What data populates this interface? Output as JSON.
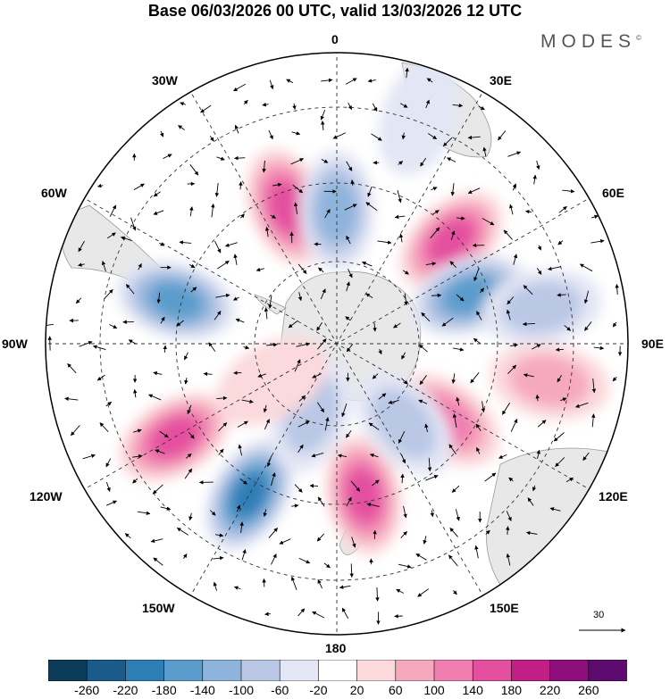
{
  "title": "Base 06/03/2026 00 UTC, valid 13/03/2026 12 UTC",
  "brand": "MODES",
  "brand_mark": "©",
  "longitude_labels": {
    "lon_0": "0",
    "lon_30e": "30E",
    "lon_60e": "60E",
    "lon_90e": "90E",
    "lon_120e": "120E",
    "lon_150e": "150E",
    "lon_180": "180",
    "lon_150w": "150W",
    "lon_120w": "120W",
    "lon_90w": "90W",
    "lon_60w": "60W",
    "lon_30w": "30W"
  },
  "reference_vector": {
    "label": "30"
  },
  "colorbar": {
    "colors": [
      "#0d3b5a",
      "#1b5b8c",
      "#2e7eb6",
      "#5a9ccc",
      "#8fb4dc",
      "#bac8e6",
      "#e3e6f4",
      "#ffffff",
      "#fbd9dc",
      "#f6a9bd",
      "#f07eb1",
      "#e4509f",
      "#c21f86",
      "#8e0f7c",
      "#5d0b6e"
    ],
    "ticks": [
      "-260",
      "-220",
      "-180",
      "-140",
      "-100",
      "-60",
      "-20",
      "20",
      "60",
      "100",
      "140",
      "180",
      "220",
      "260"
    ]
  },
  "anomalies": [
    {
      "lon": 340,
      "lat": -55,
      "value": 170
    },
    {
      "lon": 0,
      "lat": -58,
      "value": -130
    },
    {
      "lon": 48,
      "lat": -53,
      "value": 160
    },
    {
      "lon": 70,
      "lat": -56,
      "value": -150
    },
    {
      "lon": 80,
      "lat": -40,
      "value": -60
    },
    {
      "lon": 100,
      "lat": -38,
      "value": 60
    },
    {
      "lon": 125,
      "lat": -58,
      "value": 110
    },
    {
      "lon": 285,
      "lat": -50,
      "value": -170
    },
    {
      "lon": 240,
      "lat": -45,
      "value": 160
    },
    {
      "lon": 210,
      "lat": -48,
      "value": -200
    },
    {
      "lon": 170,
      "lat": -53,
      "value": 150
    },
    {
      "lon": 140,
      "lat": -65,
      "value": -90
    },
    {
      "lon": 200,
      "lat": -72,
      "value": -60
    },
    {
      "lon": 240,
      "lat": -72,
      "value": 50
    },
    {
      "lon": 20,
      "lat": -32,
      "value": -40
    }
  ]
}
